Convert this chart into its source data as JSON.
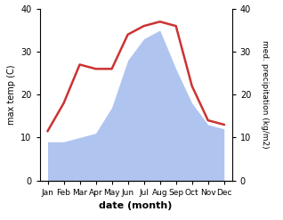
{
  "months": [
    "Jan",
    "Feb",
    "Mar",
    "Apr",
    "May",
    "Jun",
    "Jul",
    "Aug",
    "Sep",
    "Oct",
    "Nov",
    "Dec"
  ],
  "temperature": [
    11.5,
    18.0,
    27.0,
    26.0,
    26.0,
    34.0,
    36.0,
    37.0,
    36.0,
    22.0,
    14.0,
    13.0
  ],
  "precipitation": [
    9,
    9,
    10,
    11,
    17,
    28,
    33,
    35,
    26,
    18,
    13,
    12
  ],
  "temp_color": "#cc3333",
  "precip_color": "#b0c4f0",
  "ylabel_left": "max temp (C)",
  "ylabel_right": "med. precipitation (kg/m2)",
  "xlabel": "date (month)",
  "ylim_left": [
    0,
    40
  ],
  "ylim_right": [
    0,
    40
  ],
  "yticks": [
    0,
    10,
    20,
    30,
    40
  ],
  "background_color": "#ffffff",
  "line_width": 1.8
}
